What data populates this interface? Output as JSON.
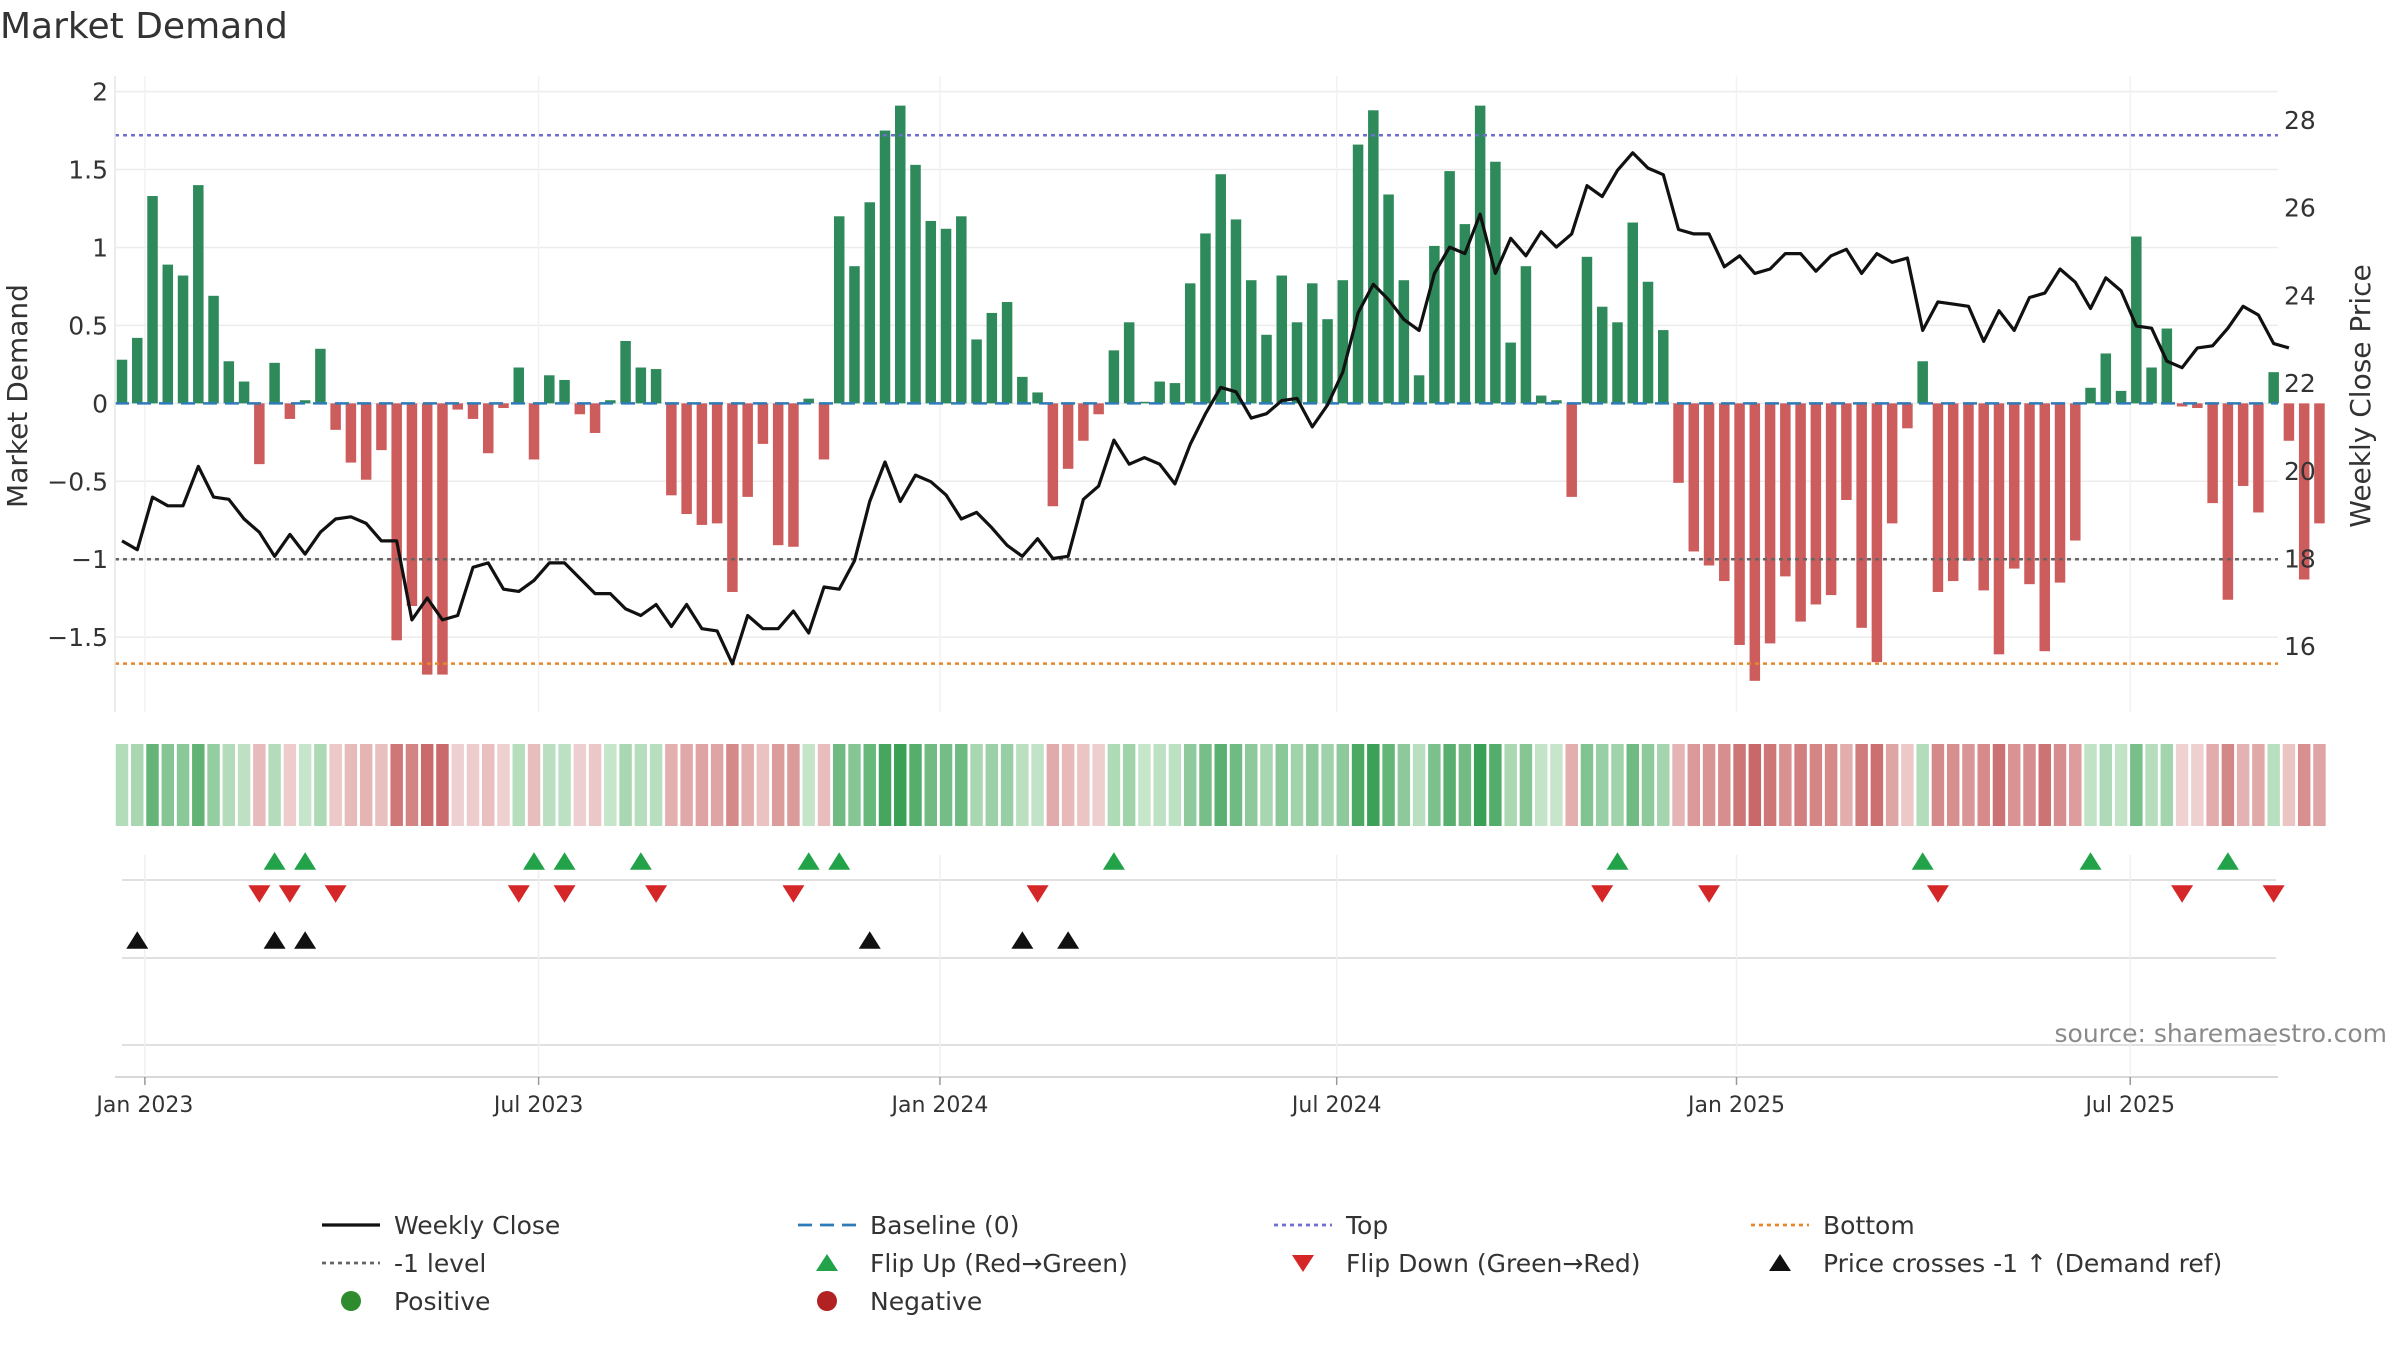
{
  "chart_data": {
    "type": "bar",
    "title": "Market Demand",
    "ylabel": "Market Demand",
    "y2label": "Weekly Close Price",
    "ylim": [
      -1.98,
      2.1
    ],
    "y2lim": [
      14.5,
      29.0
    ],
    "yticks": [
      2,
      1.5,
      1,
      0.5,
      0,
      -0.5,
      -1,
      -1.5
    ],
    "ytick_labels": [
      "2",
      "1.5",
      "1",
      "0.5",
      "0",
      "−0.5",
      "−1",
      "−1.5"
    ],
    "y2ticks": [
      28,
      26,
      24,
      22,
      20,
      18,
      16
    ],
    "y2tick_labels": [
      "28",
      "26",
      "24",
      "22",
      "20",
      "18",
      "16"
    ],
    "xticks": [
      {
        "label": "Jan 2023",
        "week": 1.5
      },
      {
        "label": "Jul 2023",
        "week": 27.3
      },
      {
        "label": "Jan 2024",
        "week": 53.6
      },
      {
        "label": "Jul 2024",
        "week": 79.6
      },
      {
        "label": "Jan 2025",
        "week": 105.8
      },
      {
        "label": "Jul 2025",
        "week": 131.6
      }
    ],
    "reference_lines": {
      "top": 1.72,
      "bottom": -1.67,
      "minus_one": -1.0,
      "baseline": 0
    },
    "demand": [
      0.28,
      0.42,
      1.33,
      0.89,
      0.82,
      1.4,
      0.69,
      0.27,
      0.14,
      -0.39,
      0.26,
      -0.1,
      0.02,
      0.35,
      -0.17,
      -0.38,
      -0.49,
      -0.3,
      -1.52,
      -1.3,
      -1.74,
      -1.74,
      -0.04,
      -0.1,
      -0.32,
      -0.03,
      0.23,
      -0.36,
      0.18,
      0.15,
      -0.07,
      -0.19,
      0.02,
      0.4,
      0.23,
      0.22,
      -0.59,
      -0.71,
      -0.78,
      -0.77,
      -1.21,
      -0.6,
      -0.26,
      -0.91,
      -0.92,
      0.03,
      -0.36,
      1.2,
      0.88,
      1.29,
      1.75,
      1.91,
      1.53,
      1.17,
      1.12,
      1.2,
      0.41,
      0.58,
      0.65,
      0.17,
      0.07,
      -0.66,
      -0.42,
      -0.24,
      -0.07,
      0.34,
      0.52,
      0.01,
      0.14,
      0.13,
      0.77,
      1.09,
      1.47,
      1.18,
      0.79,
      0.44,
      0.82,
      0.52,
      0.77,
      0.54,
      0.79,
      1.66,
      1.88,
      1.34,
      0.79,
      0.18,
      1.01,
      1.49,
      1.15,
      1.91,
      1.55,
      0.39,
      0.88,
      0.05,
      0.02,
      -0.6,
      0.94,
      0.62,
      0.52,
      1.16,
      0.78,
      0.47,
      -0.51,
      -0.95,
      -1.04,
      -1.14,
      -1.55,
      -1.78,
      -1.54,
      -1.11,
      -1.4,
      -1.29,
      -1.23,
      -0.62,
      -1.44,
      -1.66,
      -0.77,
      -0.16,
      0.27,
      -1.21,
      -1.14,
      -1.01,
      -1.2,
      -1.61,
      -1.06,
      -1.16,
      -1.59,
      -1.15,
      -0.88,
      0.1,
      0.32,
      0.08,
      1.07,
      0.23,
      0.48,
      -0.02,
      -0.03,
      -0.64,
      -1.26,
      -0.53,
      -0.7,
      0.2,
      -0.24,
      -1.13,
      -0.77
    ],
    "weekly_close": [
      18.4,
      18.2,
      19.4,
      19.2,
      19.2,
      20.1,
      19.4,
      19.35,
      18.9,
      18.6,
      18.05,
      18.55,
      18.1,
      18.6,
      18.9,
      18.95,
      18.8,
      18.4,
      18.4,
      16.6,
      17.1,
      16.6,
      16.7,
      17.8,
      17.9,
      17.3,
      17.25,
      17.5,
      17.9,
      17.9,
      17.55,
      17.2,
      17.2,
      16.85,
      16.7,
      16.95,
      16.45,
      16.95,
      16.4,
      16.35,
      15.6,
      16.7,
      16.4,
      16.4,
      16.8,
      16.3,
      17.35,
      17.3,
      17.95,
      19.3,
      20.2,
      19.3,
      19.9,
      19.75,
      19.45,
      18.9,
      19.05,
      18.7,
      18.3,
      18.05,
      18.45,
      18.0,
      18.05,
      19.35,
      19.65,
      20.7,
      20.15,
      20.3,
      20.15,
      19.7,
      20.6,
      21.3,
      21.9,
      21.8,
      21.2,
      21.3,
      21.6,
      21.65,
      21.0,
      21.5,
      22.25,
      23.6,
      24.25,
      23.9,
      23.45,
      23.2,
      24.5,
      25.1,
      24.95,
      25.85,
      24.5,
      25.3,
      24.9,
      25.45,
      25.1,
      25.4,
      26.5,
      26.25,
      26.85,
      27.25,
      26.9,
      26.75,
      25.5,
      25.4,
      25.4,
      24.65,
      24.9,
      24.5,
      24.6,
      24.95,
      24.95,
      24.55,
      24.9,
      25.05,
      24.5,
      24.95,
      24.75,
      24.85,
      23.2,
      23.85,
      23.8,
      23.75,
      22.95,
      23.65,
      23.2,
      23.95,
      24.05,
      24.6,
      24.3,
      23.7,
      24.4,
      24.1,
      23.3,
      23.25,
      22.5,
      22.35,
      22.8,
      22.85,
      23.25,
      23.75,
      23.55,
      22.9,
      22.8
    ],
    "heat_strip": {
      "max_abs": 1.91
    },
    "flip_up_weeks": [
      10,
      12,
      27,
      29,
      34,
      45,
      47,
      65,
      98,
      118,
      129,
      138
    ],
    "flip_down_weeks": [
      9,
      11,
      14,
      26,
      29,
      35,
      44,
      60,
      97,
      104,
      119,
      135,
      141
    ],
    "price_cross_weeks": [
      1,
      10,
      12,
      49,
      59,
      62
    ],
    "legend": [
      {
        "label": "Weekly Close",
        "marker": "line",
        "color": "#111111"
      },
      {
        "label": "Baseline (0)",
        "marker": "dashed",
        "color": "#2e7bb8"
      },
      {
        "label": "Top",
        "marker": "dotted",
        "color": "#6f6fd0"
      },
      {
        "label": "Bottom",
        "marker": "dotted",
        "color": "#e8862a"
      },
      {
        "label": "-1 level",
        "marker": "dotted",
        "color": "#666666"
      },
      {
        "label": "Flip Up (Red→Green)",
        "marker": "triangle-up",
        "color": "#22a34a"
      },
      {
        "label": "Flip Down (Green→Red)",
        "marker": "triangle-down",
        "color": "#d62728"
      },
      {
        "label": "Price crosses -1 ↑ (Demand ref)",
        "marker": "triangle-up",
        "color": "#111111"
      },
      {
        "label": "Positive",
        "marker": "circle",
        "color": "#2e8b2e"
      },
      {
        "label": "Negative",
        "marker": "circle",
        "color": "#b22222"
      }
    ],
    "source": "source: sharemaestro.com",
    "colors": {
      "positive_bar": "#2e8a5a",
      "negative_bar": "#cd5c5c",
      "price_line": "#111111",
      "baseline": "#2e7bb8",
      "top": "#6f6fd0",
      "bottom": "#e8862a",
      "minus_one": "#666666"
    }
  }
}
